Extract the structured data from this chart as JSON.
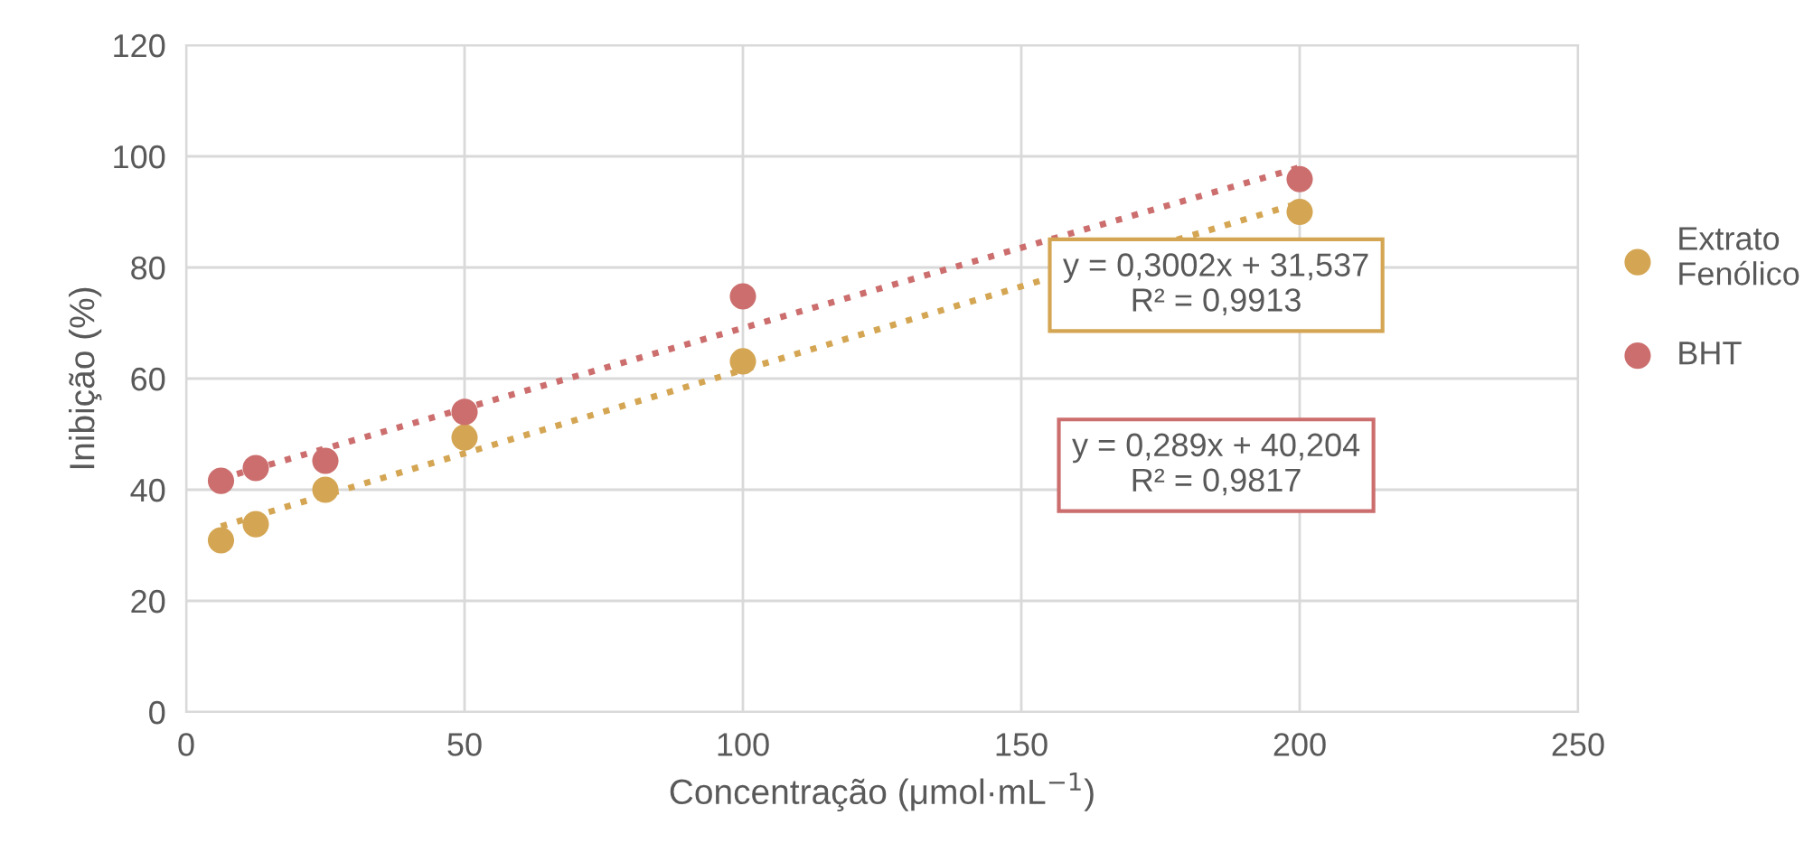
{
  "chart_data": {
    "type": "scatter",
    "xlabel": "Concentração (μmol·mL$^{−1}$)",
    "ylabel": "Inibição (%)",
    "xlim": [
      0,
      250
    ],
    "xticks": [
      0,
      50,
      100,
      150,
      200,
      250
    ],
    "ylim": [
      0,
      120
    ],
    "yticks": [
      0,
      20,
      40,
      60,
      80,
      100,
      120
    ],
    "grid": true,
    "legend": "right",
    "marker": "circle",
    "series": [
      {
        "name": "Extrato Fenólico",
        "color": "#d4a653",
        "x": [
          6.25,
          12.5,
          25,
          50,
          100,
          200
        ],
        "values": [
          30.9,
          33.8,
          40,
          49.4,
          63.1,
          90
        ]
      },
      {
        "name": "BHT",
        "color": "#cc6e6e",
        "x": [
          6.25,
          12.5,
          25,
          50,
          100,
          200
        ],
        "values": [
          41.6,
          43.9,
          45.2,
          54,
          74.8,
          95.9
        ]
      },
      {
        "type": "line",
        "color": "#d4a653",
        "line_style": "dotted",
        "marker": "none",
        "x": [
          6.25,
          200
        ],
        "values": [
          33.4,
          91.6
        ]
      },
      {
        "type": "line",
        "color": "#cc6e6e",
        "line_style": "dotted",
        "marker": "none",
        "x": [
          6.25,
          200
        ],
        "values": [
          42,
          98
        ]
      }
    ],
    "annotations": [
      "y = 0,3002x + 31,537\nR² = 0,9913",
      "y = 0,289x + 40,204\nR² = 0,9817"
    ]
  }
}
